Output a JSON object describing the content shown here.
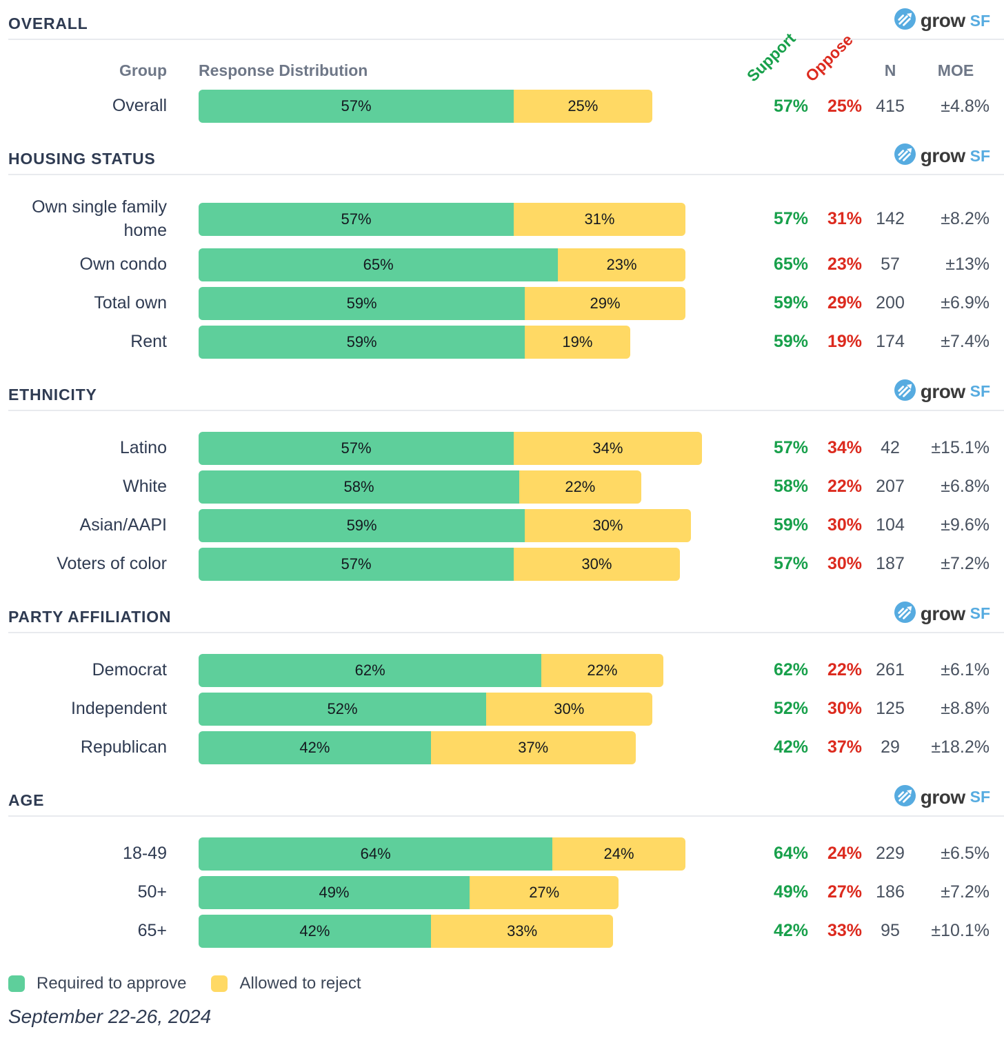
{
  "logo": {
    "icon": "growsf-circle-arrow-icon",
    "text": "grow",
    "suffix": "SF"
  },
  "table": {
    "headers": {
      "group": "Group",
      "distribution": "Response Distribution",
      "support": "Support",
      "oppose": "Oppose",
      "n": "N",
      "moe": "MOE"
    }
  },
  "legend": {
    "items": [
      {
        "label": "Required to approve",
        "color": "#5ecf9b"
      },
      {
        "label": "Allowed to reject",
        "color": "#ffd964"
      }
    ]
  },
  "footer": {
    "date": "September 22-26, 2024"
  },
  "colors": {
    "bar_support": "#5ecf9b",
    "bar_oppose": "#ffd964",
    "support_text": "#18a04b",
    "oppose_text": "#dc2a1e",
    "heading": "#2f3b52",
    "muted": "#6e7787",
    "value": "#48515f",
    "divider": "#e8eaee",
    "logo_blue": "#56abe0",
    "logo_dark": "#3a3a3a"
  },
  "chart_data": {
    "type": "bar",
    "stacked": true,
    "orientation": "horizontal",
    "x_unit": "percent",
    "xlim": [
      0,
      100
    ],
    "series_names": [
      "Required to approve",
      "Allowed to reject"
    ],
    "legend_position": "bottom",
    "sections": [
      {
        "title": "OVERALL",
        "rows": [
          {
            "label": "Overall",
            "support": 57,
            "oppose": 25,
            "n": 415,
            "moe": "±4.8%"
          }
        ]
      },
      {
        "title": "HOUSING STATUS",
        "rows": [
          {
            "label": "Own single family home",
            "support": 57,
            "oppose": 31,
            "n": 142,
            "moe": "±8.2%"
          },
          {
            "label": "Own condo",
            "support": 65,
            "oppose": 23,
            "n": 57,
            "moe": "±13%"
          },
          {
            "label": "Total own",
            "support": 59,
            "oppose": 29,
            "n": 200,
            "moe": "±6.9%"
          },
          {
            "label": "Rent",
            "support": 59,
            "oppose": 19,
            "n": 174,
            "moe": "±7.4%"
          }
        ]
      },
      {
        "title": "ETHNICITY",
        "rows": [
          {
            "label": "Latino",
            "support": 57,
            "oppose": 34,
            "n": 42,
            "moe": "±15.1%"
          },
          {
            "label": "White",
            "support": 58,
            "oppose": 22,
            "n": 207,
            "moe": "±6.8%"
          },
          {
            "label": "Asian/AAPI",
            "support": 59,
            "oppose": 30,
            "n": 104,
            "moe": "±9.6%"
          },
          {
            "label": "Voters of color",
            "support": 57,
            "oppose": 30,
            "n": 187,
            "moe": "±7.2%"
          }
        ]
      },
      {
        "title": "PARTY AFFILIATION",
        "rows": [
          {
            "label": "Democrat",
            "support": 62,
            "oppose": 22,
            "n": 261,
            "moe": "±6.1%"
          },
          {
            "label": "Independent",
            "support": 52,
            "oppose": 30,
            "n": 125,
            "moe": "±8.8%"
          },
          {
            "label": "Republican",
            "support": 42,
            "oppose": 37,
            "n": 29,
            "moe": "±18.2%"
          }
        ]
      },
      {
        "title": "AGE",
        "rows": [
          {
            "label": "18-49",
            "support": 64,
            "oppose": 24,
            "n": 229,
            "moe": "±6.5%"
          },
          {
            "label": "50+",
            "support": 49,
            "oppose": 27,
            "n": 186,
            "moe": "±7.2%"
          },
          {
            "label": "65+",
            "support": 42,
            "oppose": 33,
            "n": 95,
            "moe": "±10.1%"
          }
        ]
      }
    ]
  }
}
